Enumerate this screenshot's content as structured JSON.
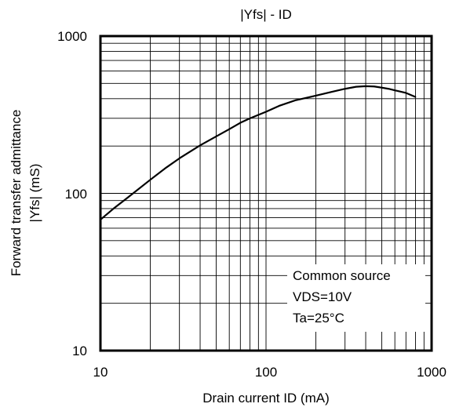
{
  "chart_data": {
    "type": "line",
    "title": "|Yfs| - ID",
    "xlabel": "Drain current  ID (mA)",
    "ylabel_lines": [
      "Forward transfer admittance",
      "|Yfs| (mS)"
    ],
    "x_scale": "log",
    "y_scale": "log",
    "xlim": [
      10,
      1000
    ],
    "ylim": [
      10,
      1000
    ],
    "x_ticks": [
      10,
      100,
      1000
    ],
    "x_tick_labels": [
      "10",
      "100",
      "1000"
    ],
    "y_ticks": [
      10,
      100,
      1000
    ],
    "y_tick_labels": [
      "10",
      "100",
      "1000"
    ],
    "grid": true,
    "annotation_lines": [
      "Common source",
      "VDS=10V",
      "Ta=25°C"
    ],
    "annotation_position": "bottom-right",
    "series": [
      {
        "x": [
          10,
          12,
          15,
          20,
          25,
          30,
          40,
          50,
          60,
          70,
          80,
          100,
          120,
          150,
          200,
          250,
          300,
          350,
          400,
          450,
          500,
          550,
          600,
          700,
          800
        ],
        "y": [
          68,
          80,
          96,
          122,
          146,
          167,
          202,
          230,
          256,
          281,
          300,
          330,
          360,
          390,
          418,
          442,
          462,
          476,
          480,
          478,
          470,
          462,
          452,
          435,
          410
        ]
      }
    ]
  }
}
